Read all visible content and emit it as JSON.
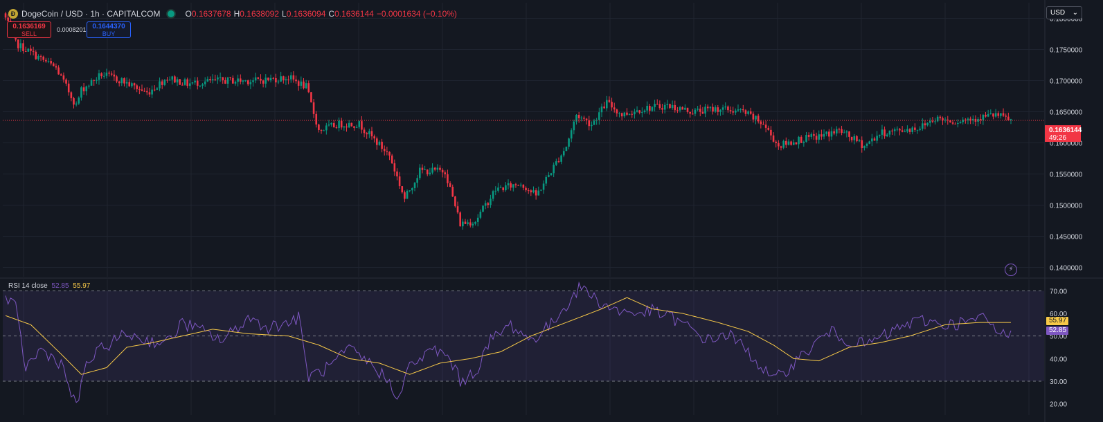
{
  "header": {
    "coin_icon_letter": "Ð",
    "symbol_title": "DogeCoin / USD · 1h · CAPITALCOM",
    "open_label": "O",
    "open": "0.1637678",
    "high_label": "H",
    "high": "0.1638092",
    "low_label": "L",
    "low": "0.1636094",
    "close_label": "C",
    "close": "0.1636144",
    "change": "−0.0001634 (−0.10%)"
  },
  "trade": {
    "sell_price": "0.1636169",
    "sell_label": "SELL",
    "spread": "0.0008201",
    "buy_price": "0.1644370",
    "buy_label": "BUY"
  },
  "currency": {
    "selected": "USD",
    "caret": "⌄"
  },
  "price_axis_ticks": [
    "0.1800000",
    "0.1750000",
    "0.1700000",
    "0.1650000",
    "0.1600000",
    "0.1550000",
    "0.1500000",
    "0.1450000",
    "0.1400000"
  ],
  "last_price": {
    "value": "0.1636144",
    "countdown": "49:26"
  },
  "rsi": {
    "legend_label": "RSI 14 close",
    "rsi_value": "52.85",
    "ma_value": "55.97",
    "ticks": [
      "70.00",
      "60.00",
      "50.00",
      "40.00",
      "30.00",
      "20.00"
    ],
    "tag_ma": "55.97",
    "tag_rsi": "52.85"
  },
  "colors": {
    "up": "#089981",
    "down": "#f23645",
    "rsi_line": "#7e57c2",
    "rsi_ma": "#f7c948",
    "background": "#141821",
    "grid": "#1f2430"
  },
  "chart_data": [
    {
      "type": "candlestick",
      "title": "DogeCoin / USD · 1h · CAPITALCOM",
      "y_range": [
        0.1385,
        0.1825
      ],
      "interval": "1h",
      "close_path_keypoints": [
        [
          0,
          0.18
        ],
        [
          4,
          0.176
        ],
        [
          10,
          0.1745
        ],
        [
          20,
          0.172
        ],
        [
          28,
          0.166
        ],
        [
          30,
          0.1685
        ],
        [
          38,
          0.171
        ],
        [
          46,
          0.17
        ],
        [
          56,
          0.168
        ],
        [
          64,
          0.1705
        ],
        [
          72,
          0.1695
        ],
        [
          84,
          0.17
        ],
        [
          100,
          0.17
        ],
        [
          112,
          0.1705
        ],
        [
          119,
          0.169
        ],
        [
          124,
          0.162
        ],
        [
          132,
          0.163
        ],
        [
          140,
          0.163
        ],
        [
          152,
          0.158
        ],
        [
          158,
          0.151
        ],
        [
          164,
          0.1555
        ],
        [
          174,
          0.1555
        ],
        [
          180,
          0.147
        ],
        [
          186,
          0.1475
        ],
        [
          194,
          0.1525
        ],
        [
          204,
          0.1535
        ],
        [
          210,
          0.1515
        ],
        [
          216,
          0.1555
        ],
        [
          222,
          0.1595
        ],
        [
          226,
          0.1645
        ],
        [
          232,
          0.163
        ],
        [
          238,
          0.1665
        ],
        [
          244,
          0.1645
        ],
        [
          252,
          0.1655
        ],
        [
          262,
          0.166
        ],
        [
          272,
          0.165
        ],
        [
          282,
          0.1655
        ],
        [
          292,
          0.165
        ],
        [
          300,
          0.163
        ],
        [
          306,
          0.1595
        ],
        [
          314,
          0.1605
        ],
        [
          322,
          0.161
        ],
        [
          330,
          0.162
        ],
        [
          340,
          0.1595
        ],
        [
          346,
          0.1615
        ],
        [
          354,
          0.162
        ],
        [
          362,
          0.1625
        ],
        [
          368,
          0.164
        ],
        [
          376,
          0.1635
        ],
        [
          384,
          0.164
        ],
        [
          392,
          0.1645
        ],
        [
          398,
          0.1636
        ]
      ]
    },
    {
      "type": "line",
      "title": "RSI 14 close",
      "y_range": [
        15,
        75
      ],
      "levels": [
        70,
        50,
        30
      ],
      "series": [
        {
          "name": "RSI",
          "keypoints": [
            [
              0,
              67
            ],
            [
              4,
              62
            ],
            [
              8,
              36
            ],
            [
              14,
              44
            ],
            [
              22,
              38
            ],
            [
              28,
              18
            ],
            [
              32,
              38
            ],
            [
              40,
              46
            ],
            [
              48,
              51
            ],
            [
              56,
              48
            ],
            [
              64,
              47
            ],
            [
              70,
              56
            ],
            [
              78,
              52
            ],
            [
              86,
              48
            ],
            [
              96,
              58
            ],
            [
              104,
              54
            ],
            [
              112,
              56
            ],
            [
              116,
              58
            ],
            [
              120,
              32
            ],
            [
              128,
              36
            ],
            [
              136,
              44
            ],
            [
              144,
              38
            ],
            [
              150,
              32
            ],
            [
              156,
              23
            ],
            [
              160,
              37
            ],
            [
              170,
              44
            ],
            [
              176,
              40
            ],
            [
              180,
              30
            ],
            [
              186,
              34
            ],
            [
              192,
              48
            ],
            [
              200,
              55
            ],
            [
              208,
              48
            ],
            [
              216,
              55
            ],
            [
              222,
              64
            ],
            [
              228,
              72
            ],
            [
              234,
              66
            ],
            [
              240,
              62
            ],
            [
              248,
              60
            ],
            [
              256,
              61
            ],
            [
              264,
              58
            ],
            [
              270,
              54
            ],
            [
              278,
              48
            ],
            [
              286,
              51
            ],
            [
              292,
              45
            ],
            [
              298,
              38
            ],
            [
              304,
              30
            ],
            [
              310,
              36
            ],
            [
              318,
              44
            ],
            [
              326,
              52
            ],
            [
              334,
              48
            ],
            [
              340,
              46
            ],
            [
              348,
              50
            ],
            [
              356,
              55
            ],
            [
              364,
              57
            ],
            [
              372,
              55
            ],
            [
              380,
              56
            ],
            [
              388,
              58
            ],
            [
              394,
              50
            ],
            [
              398,
              52.85
            ]
          ]
        },
        {
          "name": "RSI-based MA",
          "keypoints": [
            [
              0,
              59
            ],
            [
              10,
              55
            ],
            [
              22,
              42
            ],
            [
              30,
              33
            ],
            [
              40,
              36
            ],
            [
              48,
              45
            ],
            [
              58,
              47
            ],
            [
              70,
              50
            ],
            [
              82,
              53
            ],
            [
              96,
              51
            ],
            [
              112,
              50
            ],
            [
              124,
              46
            ],
            [
              136,
              40
            ],
            [
              148,
              38
            ],
            [
              160,
              33
            ],
            [
              172,
              38
            ],
            [
              184,
              40
            ],
            [
              196,
              43
            ],
            [
              208,
              50
            ],
            [
              222,
              56
            ],
            [
              236,
              62
            ],
            [
              246,
              67
            ],
            [
              256,
              62
            ],
            [
              268,
              60
            ],
            [
              282,
              56
            ],
            [
              294,
              52
            ],
            [
              304,
              46
            ],
            [
              312,
              40
            ],
            [
              322,
              39
            ],
            [
              334,
              45
            ],
            [
              346,
              47
            ],
            [
              358,
              50
            ],
            [
              372,
              55
            ],
            [
              386,
              56
            ],
            [
              398,
              55.97
            ]
          ]
        }
      ]
    }
  ]
}
